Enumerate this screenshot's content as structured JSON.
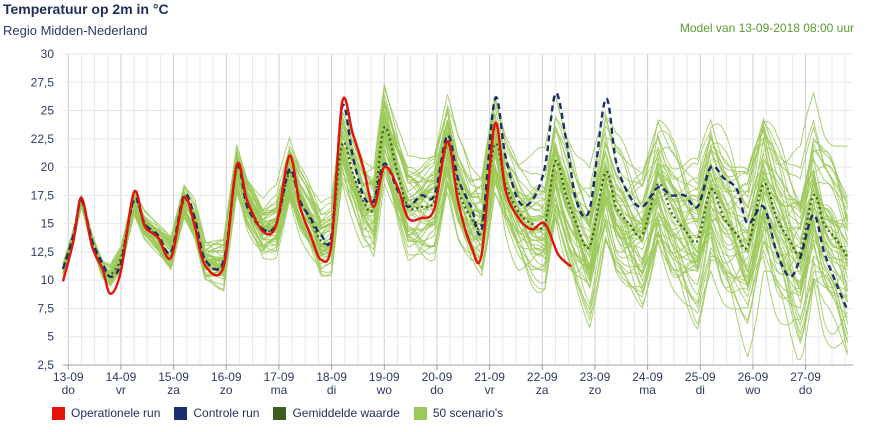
{
  "header": {
    "title": "Temperatuur op 2m in °C",
    "subtitle": "Regio Midden-Nederland",
    "model_run": "Model van 13-09-2018 08:00 uur"
  },
  "legend": [
    {
      "label": "Operationele run",
      "color": "#e3120b"
    },
    {
      "label": "Controle run",
      "color": "#1b2f6e"
    },
    {
      "label": "Gemiddelde waarde",
      "color": "#3d5e1e"
    },
    {
      "label": "50 scenario's",
      "color": "#9cc95a"
    }
  ],
  "chart_data": {
    "type": "line",
    "title": "Temperatuur op 2m in °C",
    "ylim": [
      2.5,
      30
    ],
    "y_ticks": [
      "2,5",
      "5",
      "7,5",
      "10",
      "12,5",
      "15",
      "17,5",
      "20",
      "22,5",
      "25",
      "27,5",
      "30"
    ],
    "x_ticks": [
      {
        "date": "13-09",
        "day": "do"
      },
      {
        "date": "14-09",
        "day": "vr"
      },
      {
        "date": "15-09",
        "day": "za"
      },
      {
        "date": "16-09",
        "day": "zo"
      },
      {
        "date": "17-09",
        "day": "ma"
      },
      {
        "date": "18-09",
        "day": "di"
      },
      {
        "date": "19-09",
        "day": "wo"
      },
      {
        "date": "20-09",
        "day": "do"
      },
      {
        "date": "21-09",
        "day": "vr"
      },
      {
        "date": "22-09",
        "day": "za"
      },
      {
        "date": "23-09",
        "day": "zo"
      },
      {
        "date": "24-09",
        "day": "ma"
      },
      {
        "date": "25-09",
        "day": "di"
      },
      {
        "date": "26-09",
        "day": "wo"
      },
      {
        "date": "27-09",
        "day": "do"
      }
    ],
    "grid": true,
    "legend_position": "bottom",
    "x_unit": "days since 13-09 00:00",
    "series": [
      {
        "name": "Operationele run",
        "color": "#e3120b",
        "points": [
          [
            -0.1,
            9.9
          ],
          [
            0.1,
            13.5
          ],
          [
            0.25,
            17.3
          ],
          [
            0.45,
            13.0
          ],
          [
            0.65,
            11.0
          ],
          [
            0.8,
            8.8
          ],
          [
            1.0,
            10.8
          ],
          [
            1.25,
            17.8
          ],
          [
            1.45,
            14.8
          ],
          [
            1.7,
            13.8
          ],
          [
            1.95,
            12.0
          ],
          [
            2.2,
            17.3
          ],
          [
            2.4,
            14.8
          ],
          [
            2.6,
            11.3
          ],
          [
            2.95,
            11.2
          ],
          [
            3.2,
            20.2
          ],
          [
            3.4,
            17.0
          ],
          [
            3.7,
            14.3
          ],
          [
            3.95,
            14.9
          ],
          [
            4.2,
            21.0
          ],
          [
            4.4,
            16.5
          ],
          [
            4.6,
            14.0
          ],
          [
            4.8,
            11.8
          ],
          [
            5.0,
            13.3
          ],
          [
            5.2,
            25.7
          ],
          [
            5.4,
            23.0
          ],
          [
            5.6,
            20.0
          ],
          [
            5.8,
            16.5
          ],
          [
            6.0,
            20.0
          ],
          [
            6.25,
            18.3
          ],
          [
            6.45,
            15.5
          ],
          [
            6.7,
            15.5
          ],
          [
            6.95,
            16.3
          ],
          [
            7.2,
            22.3
          ],
          [
            7.4,
            17.0
          ],
          [
            7.65,
            13.0
          ],
          [
            7.85,
            12.3
          ],
          [
            8.1,
            23.8
          ],
          [
            8.3,
            18.0
          ],
          [
            8.55,
            15.5
          ],
          [
            8.8,
            14.5
          ],
          [
            9.05,
            15.0
          ],
          [
            9.3,
            12.3
          ],
          [
            9.55,
            11.2
          ]
        ]
      },
      {
        "name": "Controle run",
        "color": "#1b2f6e",
        "points": [
          [
            -0.1,
            11.0
          ],
          [
            0.1,
            14.0
          ],
          [
            0.25,
            17.0
          ],
          [
            0.45,
            13.5
          ],
          [
            0.65,
            11.5
          ],
          [
            0.8,
            10.3
          ],
          [
            1.0,
            11.5
          ],
          [
            1.25,
            17.2
          ],
          [
            1.45,
            15.0
          ],
          [
            1.7,
            14.0
          ],
          [
            1.95,
            12.5
          ],
          [
            2.2,
            17.5
          ],
          [
            2.4,
            15.5
          ],
          [
            2.6,
            11.8
          ],
          [
            2.95,
            11.7
          ],
          [
            3.2,
            20.0
          ],
          [
            3.4,
            16.5
          ],
          [
            3.7,
            14.5
          ],
          [
            3.95,
            15.0
          ],
          [
            4.2,
            19.8
          ],
          [
            4.4,
            17.0
          ],
          [
            4.6,
            15.5
          ],
          [
            4.8,
            14.0
          ],
          [
            5.0,
            14.0
          ],
          [
            5.2,
            25.3
          ],
          [
            5.4,
            21.0
          ],
          [
            5.6,
            17.5
          ],
          [
            5.8,
            17.0
          ],
          [
            6.0,
            20.3
          ],
          [
            6.25,
            18.0
          ],
          [
            6.45,
            16.5
          ],
          [
            6.7,
            17.5
          ],
          [
            6.95,
            17.5
          ],
          [
            7.2,
            22.8
          ],
          [
            7.4,
            19.0
          ],
          [
            7.65,
            16.5
          ],
          [
            7.85,
            14.5
          ],
          [
            8.1,
            26.0
          ],
          [
            8.3,
            21.0
          ],
          [
            8.55,
            17.0
          ],
          [
            8.8,
            17.0
          ],
          [
            9.05,
            20.0
          ],
          [
            9.25,
            26.5
          ],
          [
            9.45,
            22.5
          ],
          [
            9.65,
            17.0
          ],
          [
            9.9,
            16.3
          ],
          [
            10.2,
            26.0
          ],
          [
            10.4,
            20.5
          ],
          [
            10.65,
            17.5
          ],
          [
            10.9,
            16.5
          ],
          [
            11.2,
            18.2
          ],
          [
            11.45,
            17.5
          ],
          [
            11.7,
            17.5
          ],
          [
            11.95,
            16.5
          ],
          [
            12.2,
            20.0
          ],
          [
            12.45,
            19.0
          ],
          [
            12.7,
            18.0
          ],
          [
            12.9,
            15.0
          ],
          [
            13.2,
            16.5
          ],
          [
            13.45,
            12.5
          ],
          [
            13.7,
            10.3
          ],
          [
            13.9,
            12.0
          ],
          [
            14.15,
            15.8
          ],
          [
            14.35,
            12.5
          ],
          [
            14.6,
            9.5
          ],
          [
            14.8,
            7.3
          ]
        ]
      },
      {
        "name": "Gemiddelde waarde",
        "color": "#3d5e1e",
        "points": [
          [
            -0.1,
            11.0
          ],
          [
            0.1,
            14.0
          ],
          [
            0.25,
            17.0
          ],
          [
            0.45,
            13.5
          ],
          [
            0.65,
            11.0
          ],
          [
            0.8,
            10.5
          ],
          [
            1.0,
            12.0
          ],
          [
            1.25,
            17.0
          ],
          [
            1.45,
            15.0
          ],
          [
            1.7,
            13.8
          ],
          [
            1.95,
            12.5
          ],
          [
            2.2,
            17.0
          ],
          [
            2.4,
            15.3
          ],
          [
            2.6,
            11.8
          ],
          [
            2.95,
            11.6
          ],
          [
            3.2,
            20.0
          ],
          [
            3.4,
            17.0
          ],
          [
            3.7,
            14.5
          ],
          [
            3.95,
            15.0
          ],
          [
            4.2,
            19.5
          ],
          [
            4.4,
            17.0
          ],
          [
            4.6,
            15.3
          ],
          [
            4.8,
            13.5
          ],
          [
            5.0,
            14.0
          ],
          [
            5.2,
            22.0
          ],
          [
            5.4,
            19.5
          ],
          [
            5.6,
            17.0
          ],
          [
            5.8,
            16.5
          ],
          [
            6.0,
            23.5
          ],
          [
            6.25,
            19.5
          ],
          [
            6.45,
            16.5
          ],
          [
            6.7,
            16.5
          ],
          [
            6.95,
            17.0
          ],
          [
            7.2,
            22.0
          ],
          [
            7.4,
            18.0
          ],
          [
            7.65,
            15.5
          ],
          [
            7.85,
            15.0
          ],
          [
            8.1,
            22.0
          ],
          [
            8.3,
            18.5
          ],
          [
            8.55,
            16.0
          ],
          [
            8.8,
            15.0
          ],
          [
            9.05,
            15.0
          ],
          [
            9.25,
            20.5
          ],
          [
            9.45,
            17.5
          ],
          [
            9.65,
            15.0
          ],
          [
            9.9,
            13.0
          ],
          [
            10.2,
            19.5
          ],
          [
            10.4,
            16.5
          ],
          [
            10.65,
            15.0
          ],
          [
            10.9,
            14.0
          ],
          [
            11.2,
            18.5
          ],
          [
            11.45,
            16.0
          ],
          [
            11.7,
            14.5
          ],
          [
            11.95,
            13.5
          ],
          [
            12.2,
            18.0
          ],
          [
            12.45,
            15.5
          ],
          [
            12.7,
            14.0
          ],
          [
            12.9,
            13.0
          ],
          [
            13.2,
            18.5
          ],
          [
            13.45,
            15.5
          ],
          [
            13.7,
            13.5
          ],
          [
            13.9,
            12.5
          ],
          [
            14.15,
            17.5
          ],
          [
            14.35,
            15.0
          ],
          [
            14.6,
            13.5
          ],
          [
            14.8,
            12.0
          ]
        ]
      }
    ],
    "scenario_count": 50
  }
}
